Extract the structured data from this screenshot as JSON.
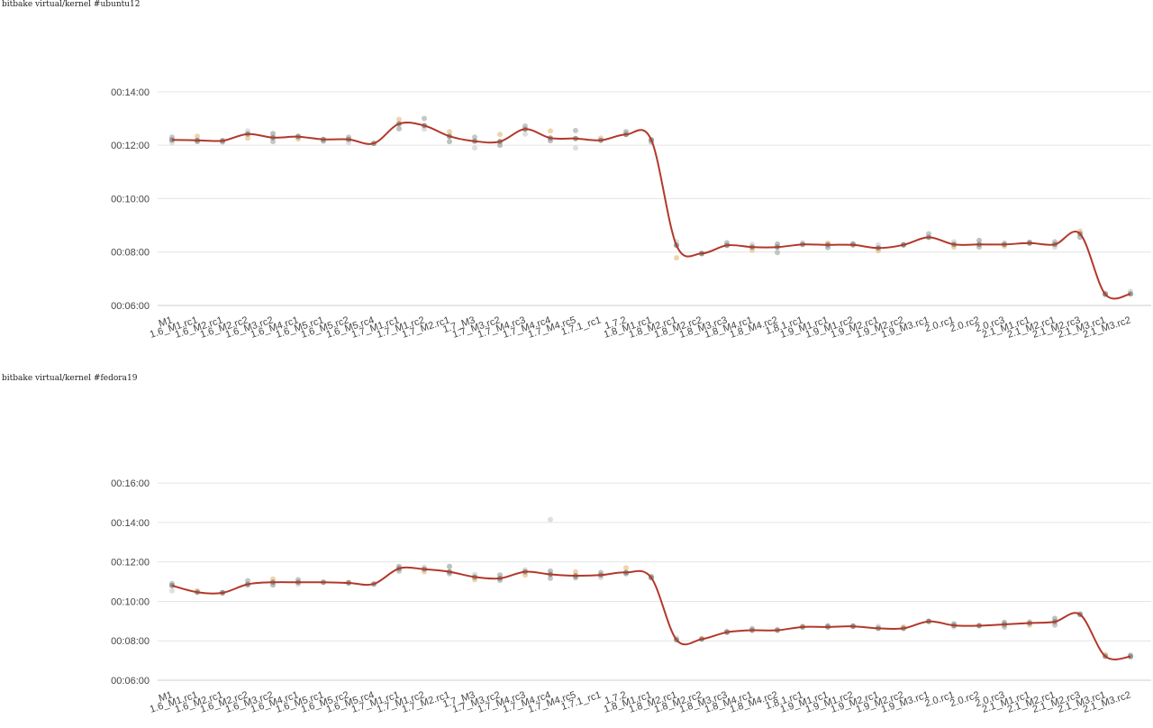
{
  "chart_data": [
    {
      "type": "line",
      "title": "bitbake virtual/kernel #ubuntu12",
      "ylim": [
        360,
        868
      ],
      "yticks": [
        {
          "value": 360,
          "label": "00:06:00"
        },
        {
          "value": 480,
          "label": "00:08:00"
        },
        {
          "value": 600,
          "label": "00:10:00"
        },
        {
          "value": 720,
          "label": "00:12:00"
        },
        {
          "value": 840,
          "label": "00:14:00"
        }
      ],
      "grid": true,
      "categories": [
        "M1",
        "1.6_M1.rc1",
        "1.6_M2.rc1",
        "1.6_M2.rc2",
        "1.6_M3.rc2",
        "1.6_M4.rc1",
        "1.6_M5.rc1",
        "1.6_M5.rc2",
        "1.6_M5.rc4",
        "1.7_M1.rc1",
        "1.7_M1.rc2",
        "1.7_M2.rc1",
        "1.7_M3",
        "1.7_M3.rc2",
        "1.7_M4.rc3",
        "1.7_M4.rc4",
        "1.7_M4.rc5",
        "1.7.1_rc1",
        "1.7.2",
        "1.8_M1.rc1",
        "1.8_M2.rc1",
        "1.8_M2.rc2",
        "1.8_M3.rc3",
        "1.8_M4.rc1",
        "1.8_M4.rc2",
        "1.8.1.rc1",
        "1.9_M1.rc1",
        "1.9_M1.rc2",
        "1.9_M2.rc1",
        "1.9_M2.rc2",
        "1.9_M3.rc1",
        "2.0.rc1",
        "2.0.rc2",
        "2.0.rc3",
        "2.1_M1.rc1",
        "2.1_M2.rc1",
        "2.1_M2.rc3",
        "2.1_M3.rc1",
        "2.1_M3.rc2"
      ],
      "series": [
        {
          "values": [
            732,
            731,
            730,
            745,
            737,
            739,
            733,
            733,
            724,
            768,
            764,
            740,
            729,
            728,
            756,
            736,
            735,
            731,
            744,
            732,
            495,
            477,
            495,
            491,
            491,
            497,
            496,
            496,
            489,
            496,
            513,
            497,
            497,
            497,
            500,
            497,
            521,
            385,
            386
          ]
        }
      ],
      "scatter_points": [
        [
          0,
          738
        ],
        [
          0,
          726
        ],
        [
          1,
          740
        ],
        [
          1,
          728
        ],
        [
          2,
          727
        ],
        [
          3,
          752
        ],
        [
          3,
          736
        ],
        [
          4,
          746
        ],
        [
          4,
          728
        ],
        [
          5,
          741
        ],
        [
          5,
          734
        ],
        [
          6,
          729
        ],
        [
          7,
          738
        ],
        [
          7,
          726
        ],
        [
          9,
          778
        ],
        [
          9,
          757
        ],
        [
          10,
          780
        ],
        [
          10,
          756
        ],
        [
          11,
          750
        ],
        [
          11,
          728
        ],
        [
          12,
          738
        ],
        [
          12,
          714
        ],
        [
          13,
          744
        ],
        [
          13,
          720
        ],
        [
          14,
          763
        ],
        [
          14,
          745
        ],
        [
          15,
          752
        ],
        [
          15,
          730
        ],
        [
          16,
          753
        ],
        [
          16,
          714
        ],
        [
          17,
          736
        ],
        [
          18,
          750
        ],
        [
          19,
          727
        ],
        [
          20,
          503
        ],
        [
          20,
          467
        ],
        [
          21,
          476
        ],
        [
          22,
          501
        ],
        [
          23,
          497
        ],
        [
          23,
          484
        ],
        [
          24,
          498
        ],
        [
          24,
          479
        ],
        [
          25,
          501
        ],
        [
          26,
          500
        ],
        [
          26,
          490
        ],
        [
          27,
          499
        ],
        [
          28,
          496
        ],
        [
          28,
          483
        ],
        [
          29,
          496
        ],
        [
          30,
          521
        ],
        [
          31,
          503
        ],
        [
          31,
          491
        ],
        [
          32,
          506
        ],
        [
          32,
          491
        ],
        [
          33,
          501
        ],
        [
          33,
          493
        ],
        [
          34,
          502
        ],
        [
          35,
          503
        ],
        [
          35,
          491
        ],
        [
          36,
          527
        ],
        [
          36,
          513
        ],
        [
          37,
          387
        ],
        [
          38,
          392
        ]
      ]
    },
    {
      "type": "line",
      "title": "bitbake virtual/kernel #fedora19",
      "ylim": [
        360,
        1048
      ],
      "yticks": [
        {
          "value": 360,
          "label": "00:06:00"
        },
        {
          "value": 480,
          "label": "00:08:00"
        },
        {
          "value": 600,
          "label": "00:10:00"
        },
        {
          "value": 720,
          "label": "00:12:00"
        },
        {
          "value": 840,
          "label": "00:14:00"
        },
        {
          "value": 960,
          "label": "00:16:00"
        }
      ],
      "grid": true,
      "categories": [
        "M1",
        "1.6_M1.rc1",
        "1.6_M2.rc1",
        "1.6_M2.rc2",
        "1.6_M3.rc2",
        "1.6_M4.rc1",
        "1.6_M5.rc1",
        "1.6_M5.rc2",
        "1.6_M5.rc4",
        "1.7_M1.rc1",
        "1.7_M1.rc2",
        "1.7_M2.rc1",
        "1.7_M3",
        "1.7_M3.rc2",
        "1.7_M4.rc3",
        "1.7_M4.rc4",
        "1.7_M4.rc5",
        "1.7.1_rc1",
        "1.7.2",
        "1.8_M1.rc1",
        "1.8_M2.rc1",
        "1.8_M2.rc2",
        "1.8_M3.rc3",
        "1.8_M4.rc1",
        "1.8_M4.rc2",
        "1.8.1.rc1",
        "1.9_M1.rc1",
        "1.9_M1.rc2",
        "1.9_M2.rc1",
        "1.9_M2.rc2",
        "1.9_M3.rc1",
        "2.0.rc1",
        "2.0.rc2",
        "2.0.rc3",
        "2.1_M1.rc1",
        "2.1_M2.rc1",
        "2.1_M2.rc3",
        "2.1_M3.rc1",
        "2.1_M3.rc2"
      ],
      "series": [
        {
          "values": [
            648,
            628,
            626,
            652,
            658,
            658,
            658,
            656,
            653,
            700,
            698,
            690,
            674,
            670,
            690,
            682,
            678,
            680,
            688,
            672,
            483,
            485,
            506,
            512,
            512,
            522,
            522,
            524,
            518,
            518,
            539,
            527,
            526,
            530,
            534,
            538,
            560,
            433,
            432
          ]
        }
      ],
      "scatter_points": [
        [
          0,
          654
        ],
        [
          0,
          632
        ],
        [
          1,
          632
        ],
        [
          2,
          627
        ],
        [
          3,
          663
        ],
        [
          3,
          648
        ],
        [
          4,
          668
        ],
        [
          4,
          650
        ],
        [
          5,
          666
        ],
        [
          5,
          652
        ],
        [
          7,
          658
        ],
        [
          9,
          706
        ],
        [
          9,
          692
        ],
        [
          10,
          704
        ],
        [
          10,
          690
        ],
        [
          11,
          706
        ],
        [
          11,
          684
        ],
        [
          12,
          682
        ],
        [
          12,
          666
        ],
        [
          13,
          680
        ],
        [
          13,
          664
        ],
        [
          14,
          696
        ],
        [
          14,
          680
        ],
        [
          15,
          692
        ],
        [
          15,
          670
        ],
        [
          15,
          849
        ],
        [
          16,
          690
        ],
        [
          16,
          672
        ],
        [
          17,
          688
        ],
        [
          17,
          672
        ],
        [
          18,
          702
        ],
        [
          18,
          684
        ],
        [
          19,
          676
        ],
        [
          20,
          489
        ],
        [
          21,
          487
        ],
        [
          22,
          508
        ],
        [
          23,
          517
        ],
        [
          24,
          515
        ],
        [
          25,
          524
        ],
        [
          26,
          526
        ],
        [
          27,
          525
        ],
        [
          28,
          524
        ],
        [
          29,
          522
        ],
        [
          30,
          540
        ],
        [
          31,
          532
        ],
        [
          31,
          522
        ],
        [
          32,
          527
        ],
        [
          33,
          536
        ],
        [
          33,
          522
        ],
        [
          34,
          538
        ],
        [
          34,
          528
        ],
        [
          35,
          548
        ],
        [
          35,
          528
        ],
        [
          36,
          563
        ],
        [
          37,
          438
        ],
        [
          38,
          436
        ]
      ]
    }
  ]
}
